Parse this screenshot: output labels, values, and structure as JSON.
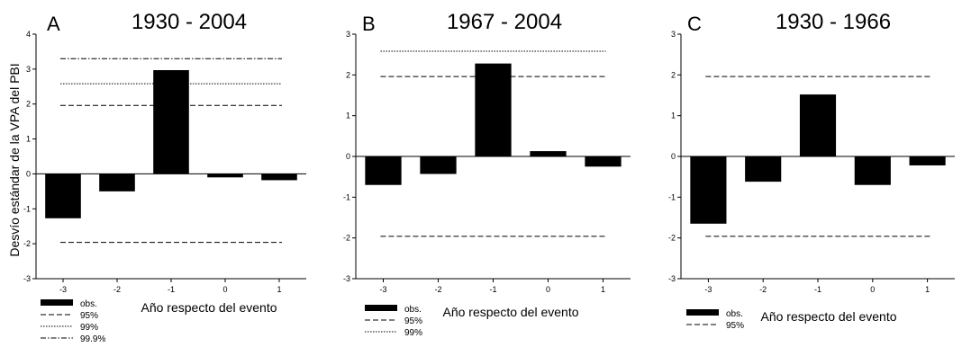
{
  "ylabel": "Desvío estándar de la VPA del PBI",
  "chart_data": [
    {
      "type": "bar",
      "panel": "A",
      "title": "1930 - 2004",
      "xlabel": "Año respecto del evento",
      "categories": [
        "-3",
        "-2",
        "-1",
        "0",
        "1"
      ],
      "values": [
        -1.27,
        -0.5,
        2.97,
        -0.1,
        -0.18
      ],
      "ylim": [
        -3,
        4
      ],
      "yticks": [
        "-3",
        "-2",
        "-1",
        "0",
        "1",
        "2",
        "3",
        "4"
      ],
      "thresholds": [
        {
          "name": "95%",
          "style": "dashed",
          "values": [
            1.96,
            -1.96
          ]
        },
        {
          "name": "99%",
          "style": "dotted",
          "values": [
            2.58
          ]
        },
        {
          "name": "99.9%",
          "style": "dashdot",
          "values": [
            3.3
          ]
        }
      ],
      "legend": [
        "obs.",
        "95%",
        "99%",
        "99.9%"
      ]
    },
    {
      "type": "bar",
      "panel": "B",
      "title": "1967 - 2004",
      "xlabel": "Año respecto del evento",
      "categories": [
        "-3",
        "-2",
        "-1",
        "0",
        "1"
      ],
      "values": [
        -0.7,
        -0.43,
        2.28,
        0.13,
        -0.25
      ],
      "ylim": [
        -3,
        3
      ],
      "yticks": [
        "-3",
        "-2",
        "-1",
        "0",
        "1",
        "2",
        "3"
      ],
      "thresholds": [
        {
          "name": "95%",
          "style": "dashed",
          "values": [
            1.96,
            -1.96
          ]
        },
        {
          "name": "99%",
          "style": "dotted",
          "values": [
            2.58
          ]
        }
      ],
      "legend": [
        "obs.",
        "95%",
        "99%"
      ]
    },
    {
      "type": "bar",
      "panel": "C",
      "title": "1930 - 1966",
      "xlabel": "Año respecto del evento",
      "categories": [
        "-3",
        "-2",
        "-1",
        "0",
        "1"
      ],
      "values": [
        -1.65,
        -0.62,
        1.52,
        -0.7,
        -0.22
      ],
      "ylim": [
        -3,
        3
      ],
      "yticks": [
        "-3",
        "-2",
        "-1",
        "0",
        "1",
        "2",
        "3"
      ],
      "thresholds": [
        {
          "name": "95%",
          "style": "dashed",
          "values": [
            1.96,
            -1.96
          ]
        }
      ],
      "legend": [
        "obs.",
        "95%"
      ]
    }
  ]
}
